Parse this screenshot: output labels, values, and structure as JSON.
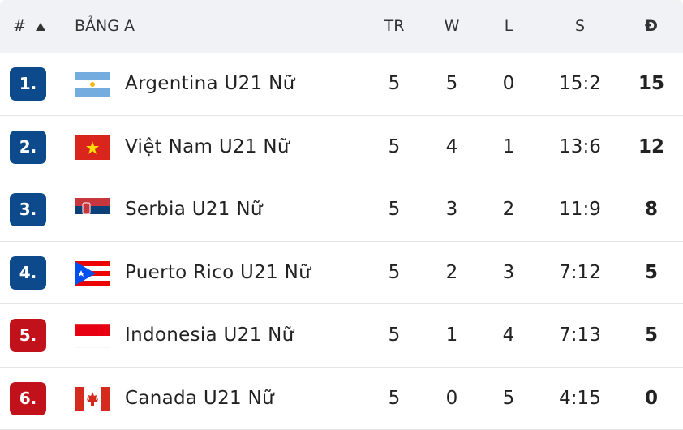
{
  "table": {
    "headers": {
      "rank": "#",
      "group": "BẢNG A",
      "played": "TR",
      "wins": "W",
      "losses": "L",
      "sets": "S",
      "points": "Đ"
    },
    "rows": [
      {
        "rank": "1.",
        "badge_color": "#0d4a8c",
        "team": "Argentina U21 Nữ",
        "played": 5,
        "wins": 5,
        "losses": 0,
        "sets": "15:2",
        "points": 15
      },
      {
        "rank": "2.",
        "badge_color": "#0d4a8c",
        "team": "Việt Nam U21 Nữ",
        "played": 5,
        "wins": 4,
        "losses": 1,
        "sets": "13:6",
        "points": 12
      },
      {
        "rank": "3.",
        "badge_color": "#0d4a8c",
        "team": "Serbia U21 Nữ",
        "played": 5,
        "wins": 3,
        "losses": 2,
        "sets": "11:9",
        "points": 8
      },
      {
        "rank": "4.",
        "badge_color": "#0d4a8c",
        "team": "Puerto Rico U21 Nữ",
        "played": 5,
        "wins": 2,
        "losses": 3,
        "sets": "7:12",
        "points": 5
      },
      {
        "rank": "5.",
        "badge_color": "#c1121c",
        "team": "Indonesia U21 Nữ",
        "played": 5,
        "wins": 1,
        "losses": 4,
        "sets": "7:13",
        "points": 5
      },
      {
        "rank": "6.",
        "badge_color": "#c1121c",
        "team": "Canada U21 Nữ",
        "played": 5,
        "wins": 0,
        "losses": 5,
        "sets": "4:15",
        "points": 0
      }
    ]
  }
}
